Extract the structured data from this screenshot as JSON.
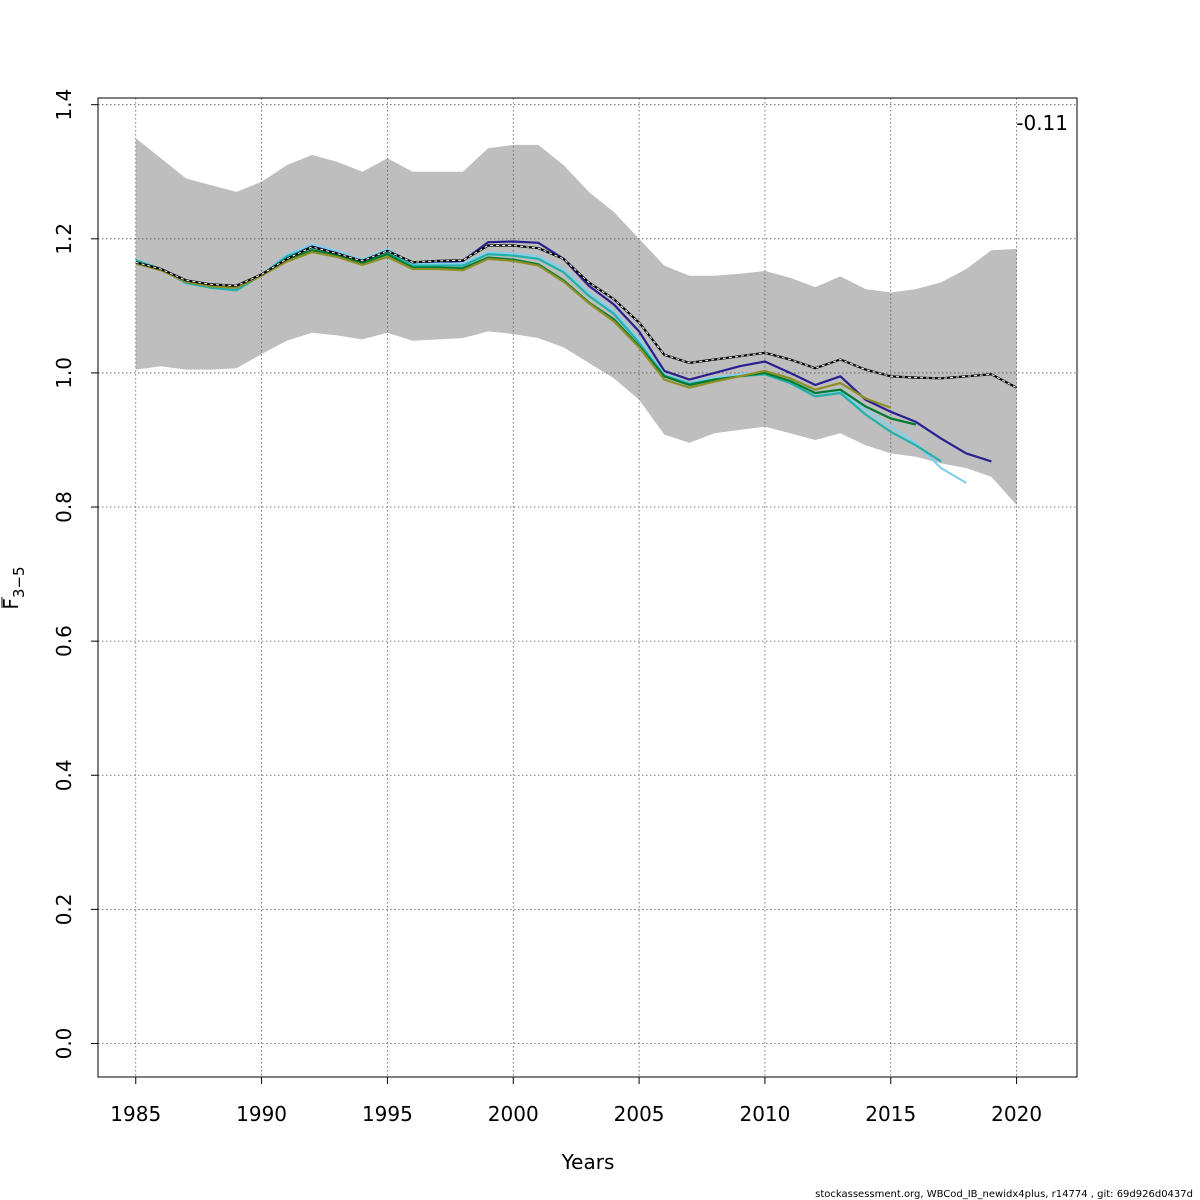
{
  "chart_data": {
    "type": "line",
    "xlabel": "Years",
    "ylabel": "F",
    "ylabel_subscript": "3−5",
    "xlim": [
      1983.5,
      2022.4
    ],
    "ylim": [
      -0.05,
      1.41
    ],
    "xticks": [
      "1985",
      "1990",
      "1995",
      "2000",
      "2005",
      "2010",
      "2015",
      "2020"
    ],
    "yticks": [
      "0.0",
      "0.2",
      "0.4",
      "0.6",
      "0.8",
      "1.0",
      "1.2",
      "1.4"
    ],
    "grid": true,
    "annotation": "-0.11",
    "confidence_band": {
      "color": "#bebebe",
      "x": [
        1985,
        1986,
        1987,
        1988,
        1989,
        1990,
        1991,
        1992,
        1993,
        1994,
        1995,
        1996,
        1997,
        1998,
        1999,
        2000,
        2001,
        2002,
        2003,
        2004,
        2005,
        2006,
        2007,
        2008,
        2009,
        2010,
        2011,
        2012,
        2013,
        2014,
        2015,
        2016,
        2017,
        2018,
        2019,
        2020
      ],
      "upper": [
        1.35,
        1.32,
        1.29,
        1.28,
        1.27,
        1.285,
        1.31,
        1.325,
        1.315,
        1.3,
        1.32,
        1.3,
        1.3,
        1.3,
        1.335,
        1.34,
        1.34,
        1.31,
        1.27,
        1.24,
        1.2,
        1.16,
        1.145,
        1.145,
        1.148,
        1.152,
        1.142,
        1.128,
        1.144,
        1.125,
        1.12,
        1.125,
        1.135,
        1.155,
        1.183,
        1.185
      ],
      "lower": [
        1.005,
        1.01,
        1.005,
        1.005,
        1.007,
        1.028,
        1.048,
        1.06,
        1.056,
        1.05,
        1.06,
        1.048,
        1.05,
        1.052,
        1.062,
        1.058,
        1.052,
        1.038,
        1.015,
        0.992,
        0.96,
        0.908,
        0.896,
        0.91,
        0.915,
        0.92,
        0.91,
        0.9,
        0.91,
        0.892,
        0.88,
        0.875,
        0.865,
        0.858,
        0.845,
        0.803
      ]
    },
    "series": [
      {
        "color": "#000000",
        "dashed_overlay": true,
        "x": [
          1985,
          1986,
          1987,
          1988,
          1989,
          1990,
          1991,
          1992,
          1993,
          1994,
          1995,
          1996,
          1997,
          1998,
          1999,
          2000,
          2001,
          2002,
          2003,
          2004,
          2005,
          2006,
          2007,
          2008,
          2009,
          2010,
          2011,
          2012,
          2013,
          2014,
          2015,
          2016,
          2017,
          2018,
          2019,
          2020
        ],
        "values": [
          1.165,
          1.155,
          1.138,
          1.132,
          1.13,
          1.147,
          1.17,
          1.188,
          1.178,
          1.167,
          1.182,
          1.165,
          1.167,
          1.168,
          1.19,
          1.19,
          1.186,
          1.17,
          1.135,
          1.11,
          1.075,
          1.027,
          1.015,
          1.02,
          1.025,
          1.03,
          1.02,
          1.007,
          1.02,
          1.005,
          0.995,
          0.993,
          0.992,
          0.995,
          0.998,
          0.978
        ]
      },
      {
        "color": "#2a1f8f",
        "x": [
          1985,
          1986,
          1987,
          1988,
          1989,
          1990,
          1991,
          1992,
          1993,
          1994,
          1995,
          1996,
          1997,
          1998,
          1999,
          2000,
          2001,
          2002,
          2003,
          2004,
          2005,
          2006,
          2007,
          2008,
          2009,
          2010,
          2011,
          2012,
          2013,
          2014,
          2015,
          2016,
          2017,
          2018,
          2019
        ],
        "values": [
          1.165,
          1.155,
          1.138,
          1.131,
          1.128,
          1.147,
          1.172,
          1.19,
          1.18,
          1.168,
          1.183,
          1.163,
          1.165,
          1.167,
          1.195,
          1.196,
          1.194,
          1.17,
          1.13,
          1.102,
          1.062,
          1.003,
          0.99,
          1.0,
          1.01,
          1.017,
          1.0,
          0.982,
          0.995,
          0.96,
          0.942,
          0.927,
          0.902,
          0.88,
          0.868
        ]
      },
      {
        "color": "#87ceeb",
        "x": [
          1985,
          1986,
          1987,
          1988,
          1989,
          1990,
          1991,
          1992,
          1993,
          1994,
          1995,
          1996,
          1997,
          1998,
          1999,
          2000,
          2001,
          2002,
          2003,
          2004,
          2005,
          2006,
          2007,
          2008,
          2009,
          2010,
          2011,
          2012,
          2013,
          2014,
          2015,
          2016,
          2017,
          2018
        ],
        "values": [
          1.168,
          1.155,
          1.135,
          1.127,
          1.124,
          1.146,
          1.176,
          1.192,
          1.182,
          1.169,
          1.185,
          1.162,
          1.163,
          1.163,
          1.18,
          1.178,
          1.174,
          1.155,
          1.12,
          1.092,
          1.05,
          0.998,
          0.985,
          0.993,
          0.998,
          1.001,
          0.99,
          0.97,
          0.973,
          0.945,
          0.92,
          0.895,
          0.858,
          0.836
        ]
      },
      {
        "color": "#20b2aa",
        "x": [
          1985,
          1986,
          1987,
          1988,
          1989,
          1990,
          1991,
          1992,
          1993,
          1994,
          1995,
          1996,
          1997,
          1998,
          1999,
          2000,
          2001,
          2002,
          2003,
          2004,
          2005,
          2006,
          2007,
          2008,
          2009,
          2010,
          2011,
          2012,
          2013,
          2014,
          2015,
          2016,
          2017
        ],
        "values": [
          1.168,
          1.155,
          1.134,
          1.127,
          1.123,
          1.146,
          1.174,
          1.187,
          1.178,
          1.165,
          1.18,
          1.16,
          1.16,
          1.16,
          1.177,
          1.175,
          1.17,
          1.15,
          1.115,
          1.088,
          1.045,
          0.996,
          0.984,
          0.99,
          0.995,
          0.998,
          0.985,
          0.965,
          0.97,
          0.938,
          0.912,
          0.892,
          0.868
        ]
      },
      {
        "color": "#007a2e",
        "x": [
          1985,
          1986,
          1987,
          1988,
          1989,
          1990,
          1991,
          1992,
          1993,
          1994,
          1995,
          1996,
          1997,
          1998,
          1999,
          2000,
          2001,
          2002,
          2003,
          2004,
          2005,
          2006,
          2007,
          2008,
          2009,
          2010,
          2011,
          2012,
          2013,
          2014,
          2015,
          2016
        ],
        "values": [
          1.165,
          1.155,
          1.137,
          1.131,
          1.129,
          1.147,
          1.168,
          1.183,
          1.176,
          1.164,
          1.177,
          1.157,
          1.157,
          1.156,
          1.172,
          1.169,
          1.162,
          1.138,
          1.105,
          1.08,
          1.04,
          0.995,
          0.982,
          0.99,
          0.995,
          1.0,
          0.988,
          0.97,
          0.975,
          0.95,
          0.932,
          0.923
        ]
      },
      {
        "color": "#8f8f28",
        "x": [
          1985,
          1986,
          1987,
          1988,
          1989,
          1990,
          1991,
          1992,
          1993,
          1994,
          1995,
          1996,
          1997,
          1998,
          1999,
          2000,
          2001,
          2002,
          2003,
          2004,
          2005,
          2006,
          2007,
          2008,
          2009,
          2010,
          2011,
          2012,
          2013,
          2014,
          2015
        ],
        "values": [
          1.163,
          1.153,
          1.136,
          1.129,
          1.127,
          1.145,
          1.166,
          1.18,
          1.173,
          1.161,
          1.173,
          1.155,
          1.155,
          1.153,
          1.17,
          1.167,
          1.16,
          1.136,
          1.104,
          1.077,
          1.038,
          0.99,
          0.978,
          0.987,
          0.995,
          1.003,
          0.992,
          0.975,
          0.985,
          0.962,
          0.948
        ]
      }
    ]
  },
  "footer": "stockassessment.org, WBCod_IB_newidx4plus, r14774 , git: 69d926d0437d"
}
